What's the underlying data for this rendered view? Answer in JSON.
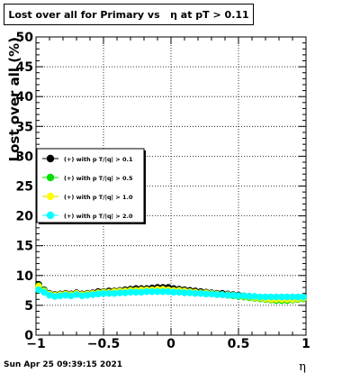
{
  "chart_data": {
    "type": "scatter",
    "title": "Lost over all for Primary vs   η at pT > 0.11",
    "xlabel": "η",
    "ylabel": "Lost over all (%)",
    "xlim": [
      -1,
      1
    ],
    "ylim": [
      0,
      50
    ],
    "grid": true,
    "legend_position": "middle-left",
    "x_ticks": [
      "−1",
      "−0.5",
      "0",
      "0.5",
      "1"
    ],
    "y_ticks": [
      "0",
      "5",
      "10",
      "15",
      "20",
      "25",
      "30",
      "35",
      "40",
      "45",
      "50"
    ],
    "x_tick_values": [
      -1,
      -0.5,
      0,
      0.5,
      1
    ],
    "y_tick_values": [
      0,
      5,
      10,
      15,
      20,
      25,
      30,
      35,
      40,
      45,
      50
    ],
    "series": [
      {
        "name": "(+) with p T/|q| > 0.1",
        "color": "#000000",
        "x": [
          -0.98,
          -0.94,
          -0.9,
          -0.86,
          -0.82,
          -0.78,
          -0.74,
          -0.7,
          -0.66,
          -0.62,
          -0.58,
          -0.54,
          -0.5,
          -0.46,
          -0.42,
          -0.38,
          -0.34,
          -0.3,
          -0.26,
          -0.22,
          -0.18,
          -0.14,
          -0.1,
          -0.06,
          -0.02,
          0.02,
          0.06,
          0.1,
          0.14,
          0.18,
          0.22,
          0.26,
          0.3,
          0.34,
          0.38,
          0.42,
          0.46,
          0.5,
          0.54,
          0.58,
          0.62,
          0.66,
          0.7,
          0.74,
          0.78,
          0.82,
          0.86,
          0.9,
          0.94,
          0.98
        ],
        "y": [
          8.5,
          7.6,
          7.0,
          6.8,
          6.9,
          7.0,
          6.9,
          7.1,
          6.9,
          7.0,
          7.1,
          7.3,
          7.3,
          7.4,
          7.4,
          7.5,
          7.6,
          7.7,
          7.8,
          7.8,
          7.8,
          7.9,
          8.0,
          8.0,
          8.0,
          7.8,
          7.7,
          7.6,
          7.5,
          7.4,
          7.3,
          7.2,
          7.1,
          7.0,
          7.0,
          6.9,
          6.8,
          6.7,
          6.6,
          6.5,
          6.4,
          6.3,
          6.2,
          6.1,
          6.0,
          6.0,
          6.0,
          6.1,
          6.2,
          6.3
        ]
      },
      {
        "name": "(+) with p T/|q| > 0.5",
        "color": "#00e000",
        "x": [
          -0.98,
          -0.94,
          -0.9,
          -0.86,
          -0.82,
          -0.78,
          -0.74,
          -0.7,
          -0.66,
          -0.62,
          -0.58,
          -0.54,
          -0.5,
          -0.46,
          -0.42,
          -0.38,
          -0.34,
          -0.3,
          -0.26,
          -0.22,
          -0.18,
          -0.14,
          -0.1,
          -0.06,
          -0.02,
          0.02,
          0.06,
          0.1,
          0.14,
          0.18,
          0.22,
          0.26,
          0.3,
          0.34,
          0.38,
          0.42,
          0.46,
          0.5,
          0.54,
          0.58,
          0.62,
          0.66,
          0.7,
          0.74,
          0.78,
          0.82,
          0.86,
          0.9,
          0.94,
          0.98
        ],
        "y": [
          8.3,
          7.5,
          6.9,
          6.7,
          6.8,
          6.9,
          6.8,
          7.0,
          6.8,
          6.9,
          7.0,
          7.1,
          7.2,
          7.2,
          7.3,
          7.3,
          7.4,
          7.5,
          7.5,
          7.5,
          7.6,
          7.6,
          7.6,
          7.6,
          7.6,
          7.5,
          7.5,
          7.4,
          7.3,
          7.2,
          7.1,
          7.0,
          7.0,
          6.9,
          6.8,
          6.7,
          6.6,
          6.5,
          6.4,
          6.3,
          6.2,
          6.1,
          6.0,
          5.9,
          5.8,
          5.8,
          5.8,
          5.9,
          6.0,
          6.1
        ]
      },
      {
        "name": "(+) with p T/|q| > 1.0",
        "color": "#ffff00",
        "x": [
          -0.98,
          -0.94,
          -0.9,
          -0.86,
          -0.82,
          -0.78,
          -0.74,
          -0.7,
          -0.66,
          -0.62,
          -0.58,
          -0.54,
          -0.5,
          -0.46,
          -0.42,
          -0.38,
          -0.34,
          -0.3,
          -0.26,
          -0.22,
          -0.18,
          -0.14,
          -0.1,
          -0.06,
          -0.02,
          0.02,
          0.06,
          0.1,
          0.14,
          0.18,
          0.22,
          0.26,
          0.3,
          0.34,
          0.38,
          0.42,
          0.46,
          0.5,
          0.54,
          0.58,
          0.62,
          0.66,
          0.7,
          0.74,
          0.78,
          0.82,
          0.86,
          0.9,
          0.94,
          0.98
        ],
        "y": [
          8.2,
          7.4,
          6.9,
          6.7,
          6.8,
          6.9,
          6.8,
          7.0,
          6.8,
          6.9,
          7.0,
          7.1,
          7.2,
          7.2,
          7.3,
          7.4,
          7.4,
          7.5,
          7.5,
          7.6,
          7.6,
          7.6,
          7.7,
          7.7,
          7.6,
          7.5,
          7.5,
          7.4,
          7.3,
          7.2,
          7.1,
          7.1,
          7.0,
          6.9,
          6.8,
          6.8,
          6.7,
          6.6,
          6.5,
          6.4,
          6.3,
          6.2,
          6.1,
          6.0,
          6.0,
          6.0,
          6.0,
          6.0,
          6.1,
          6.2
        ]
      },
      {
        "name": "(+) with p T/|q| > 2.0",
        "color": "#00ffff",
        "x": [
          -0.98,
          -0.94,
          -0.9,
          -0.86,
          -0.82,
          -0.78,
          -0.74,
          -0.7,
          -0.66,
          -0.62,
          -0.58,
          -0.54,
          -0.5,
          -0.46,
          -0.42,
          -0.38,
          -0.34,
          -0.3,
          -0.26,
          -0.22,
          -0.18,
          -0.14,
          -0.1,
          -0.06,
          -0.02,
          0.02,
          0.06,
          0.1,
          0.14,
          0.18,
          0.22,
          0.26,
          0.3,
          0.34,
          0.38,
          0.42,
          0.46,
          0.5,
          0.54,
          0.58,
          0.62,
          0.66,
          0.7,
          0.74,
          0.78,
          0.82,
          0.86,
          0.9,
          0.94,
          0.98
        ],
        "y": [
          7.6,
          7.2,
          6.7,
          6.5,
          6.6,
          6.7,
          6.6,
          6.8,
          6.6,
          6.7,
          6.8,
          6.9,
          7.0,
          7.0,
          7.0,
          7.1,
          7.1,
          7.2,
          7.2,
          7.2,
          7.3,
          7.3,
          7.3,
          7.3,
          7.3,
          7.2,
          7.2,
          7.1,
          7.1,
          7.0,
          7.0,
          6.9,
          6.9,
          6.8,
          6.8,
          6.7,
          6.7,
          6.6,
          6.6,
          6.5,
          6.5,
          6.4,
          6.4,
          6.4,
          6.4,
          6.4,
          6.4,
          6.4,
          6.4,
          6.4
        ]
      }
    ]
  },
  "footer": {
    "timestamp": "Sun Apr 25 09:39:15 2021"
  }
}
